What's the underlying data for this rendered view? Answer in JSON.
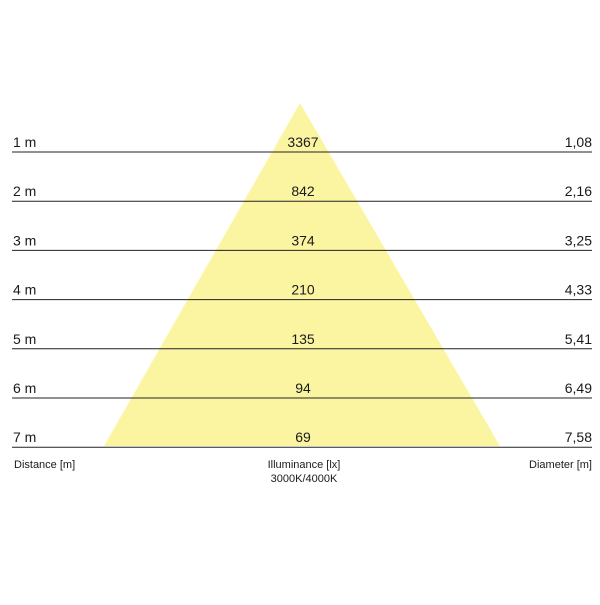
{
  "rows": [
    {
      "distance": "1 m",
      "illuminance": 3367,
      "diameter": "1,08"
    },
    {
      "distance": "2 m",
      "illuminance": 842,
      "diameter": "2,16"
    },
    {
      "distance": "3 m",
      "illuminance": 374,
      "diameter": "3,25"
    },
    {
      "distance": "4 m",
      "illuminance": 210,
      "diameter": "4,33"
    },
    {
      "distance": "5 m",
      "illuminance": 135,
      "diameter": "5,41"
    },
    {
      "distance": "6 m",
      "illuminance": 94,
      "diameter": "6,49"
    },
    {
      "distance": "7 m",
      "illuminance": 69,
      "diameter": "7,58"
    }
  ],
  "footer": {
    "distance": "Distance [m]",
    "illuminance": "Illuminance [lx]",
    "color_temp": "3000K/4000K",
    "diameter": "Diameter [m]"
  }
}
